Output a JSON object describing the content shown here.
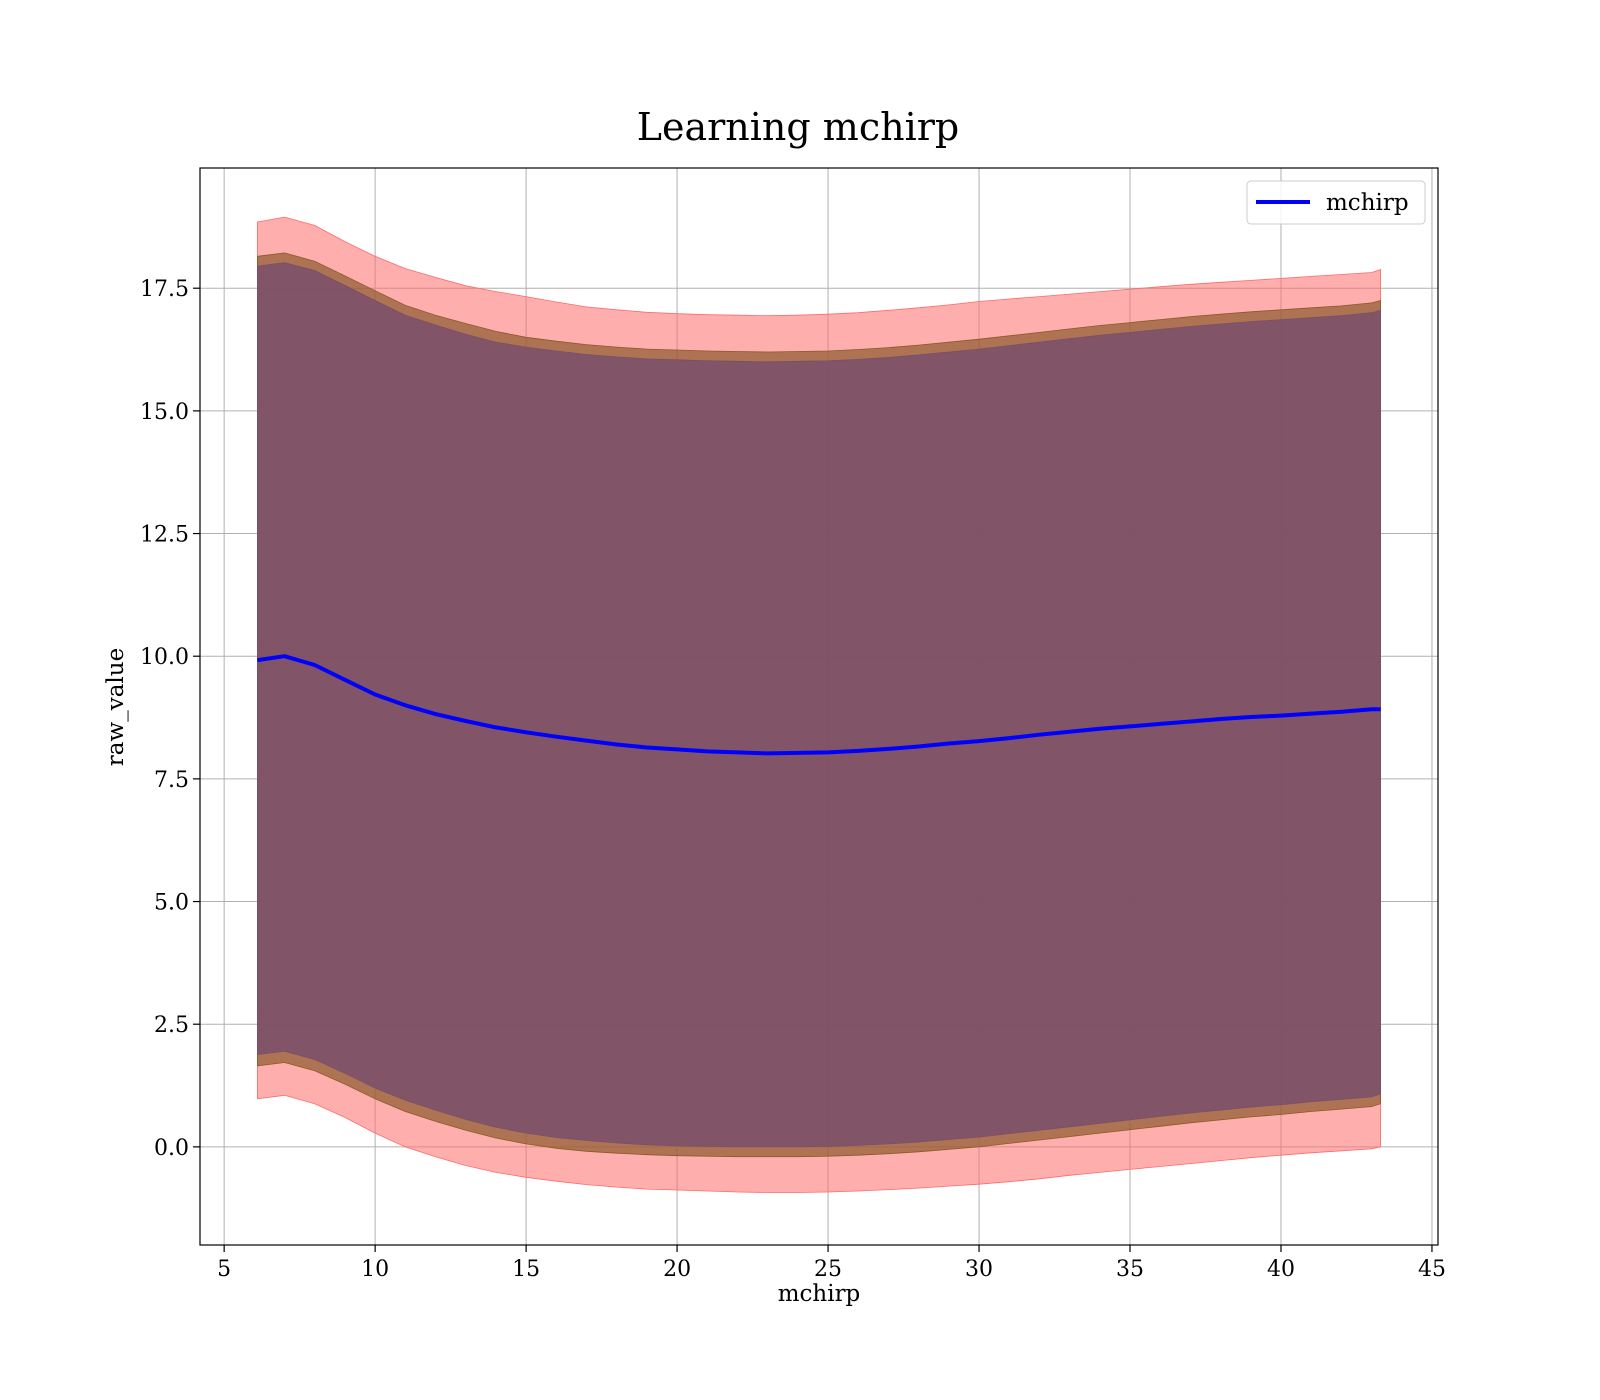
{
  "chart_data": {
    "type": "line",
    "title": "Learning mchirp",
    "xlabel": "mchirp",
    "ylabel": "raw_value",
    "xlim": [
      4.2,
      45.2
    ],
    "ylim": [
      -2.0,
      19.95
    ],
    "xticks": [
      5,
      10,
      15,
      20,
      25,
      30,
      35,
      40,
      45
    ],
    "xtick_labels": [
      "5",
      "10",
      "15",
      "20",
      "25",
      "30",
      "35",
      "40",
      "45"
    ],
    "yticks": [
      0.0,
      2.5,
      5.0,
      7.5,
      10.0,
      12.5,
      15.0,
      17.5
    ],
    "ytick_labels": [
      "0.0",
      "2.5",
      "5.0",
      "7.5",
      "10.0",
      "12.5",
      "15.0",
      "17.5"
    ],
    "grid": true,
    "legend": {
      "position": "top-right",
      "entries": [
        "mchirp"
      ]
    },
    "x": [
      6.1,
      7.0,
      8.0,
      9.0,
      10.0,
      11.0,
      12.0,
      13.0,
      14.0,
      15.0,
      16.0,
      17.0,
      18.0,
      19.0,
      20.0,
      21.0,
      22.0,
      23.0,
      24.0,
      25.0,
      26.0,
      27.0,
      28.0,
      29.0,
      30.0,
      31.0,
      32.0,
      33.0,
      34.0,
      35.0,
      36.0,
      37.0,
      38.0,
      39.0,
      40.0,
      41.0,
      42.0,
      43.0,
      43.3
    ],
    "series": [
      {
        "name": "mchirp",
        "color": "#0000ff",
        "values": [
          9.92,
          10.0,
          9.82,
          9.52,
          9.22,
          9.0,
          8.82,
          8.68,
          8.55,
          8.45,
          8.36,
          8.28,
          8.2,
          8.14,
          8.1,
          8.06,
          8.04,
          8.02,
          8.03,
          8.04,
          8.07,
          8.11,
          8.16,
          8.22,
          8.27,
          8.33,
          8.4,
          8.46,
          8.52,
          8.57,
          8.62,
          8.67,
          8.72,
          8.76,
          8.79,
          8.83,
          8.87,
          8.92,
          8.92
        ]
      }
    ],
    "bands": [
      {
        "color": "#ff6b6b",
        "opacity": 0.55,
        "upper": [
          18.85,
          18.95,
          18.78,
          18.45,
          18.15,
          17.9,
          17.72,
          17.55,
          17.43,
          17.33,
          17.22,
          17.12,
          17.06,
          17.01,
          16.98,
          16.96,
          16.95,
          16.94,
          16.95,
          16.97,
          17.0,
          17.05,
          17.1,
          17.16,
          17.23,
          17.28,
          17.33,
          17.38,
          17.43,
          17.48,
          17.53,
          17.58,
          17.62,
          17.66,
          17.7,
          17.74,
          17.78,
          17.82,
          17.88
        ],
        "lower": [
          0.98,
          1.05,
          0.88,
          0.6,
          0.28,
          0.0,
          -0.2,
          -0.38,
          -0.52,
          -0.62,
          -0.7,
          -0.77,
          -0.82,
          -0.86,
          -0.88,
          -0.9,
          -0.92,
          -0.93,
          -0.93,
          -0.92,
          -0.9,
          -0.87,
          -0.84,
          -0.8,
          -0.76,
          -0.71,
          -0.65,
          -0.58,
          -0.52,
          -0.46,
          -0.4,
          -0.34,
          -0.28,
          -0.22,
          -0.17,
          -0.12,
          -0.08,
          -0.04,
          0.0
        ]
      },
      {
        "color": "#8b5a2b",
        "opacity": 0.7,
        "upper": [
          18.15,
          18.22,
          18.05,
          17.75,
          17.45,
          17.15,
          16.95,
          16.78,
          16.62,
          16.5,
          16.42,
          16.35,
          16.3,
          16.26,
          16.24,
          16.22,
          16.21,
          16.2,
          16.21,
          16.22,
          16.25,
          16.29,
          16.34,
          16.4,
          16.46,
          16.53,
          16.6,
          16.67,
          16.74,
          16.8,
          16.86,
          16.92,
          16.97,
          17.02,
          17.06,
          17.1,
          17.14,
          17.2,
          17.25
        ],
        "lower": [
          1.65,
          1.72,
          1.55,
          1.28,
          0.98,
          0.72,
          0.52,
          0.34,
          0.18,
          0.06,
          -0.03,
          -0.09,
          -0.13,
          -0.16,
          -0.18,
          -0.19,
          -0.2,
          -0.2,
          -0.2,
          -0.19,
          -0.17,
          -0.14,
          -0.1,
          -0.05,
          0.0,
          0.07,
          0.14,
          0.21,
          0.28,
          0.35,
          0.42,
          0.49,
          0.55,
          0.61,
          0.66,
          0.72,
          0.77,
          0.82,
          0.88
        ]
      },
      {
        "color": "#7a4f6b",
        "opacity": 0.85,
        "upper": [
          17.95,
          18.02,
          17.86,
          17.56,
          17.25,
          16.95,
          16.75,
          16.56,
          16.4,
          16.3,
          16.22,
          16.15,
          16.1,
          16.06,
          16.04,
          16.02,
          16.01,
          16.0,
          16.01,
          16.02,
          16.05,
          16.09,
          16.14,
          16.2,
          16.26,
          16.33,
          16.4,
          16.47,
          16.54,
          16.6,
          16.66,
          16.72,
          16.77,
          16.82,
          16.86,
          16.9,
          16.94,
          17.0,
          17.05
        ],
        "lower": [
          1.88,
          1.95,
          1.78,
          1.5,
          1.2,
          0.95,
          0.75,
          0.56,
          0.4,
          0.28,
          0.19,
          0.13,
          0.08,
          0.04,
          0.02,
          0.01,
          0.0,
          0.0,
          0.0,
          0.01,
          0.03,
          0.06,
          0.1,
          0.15,
          0.2,
          0.27,
          0.34,
          0.41,
          0.48,
          0.55,
          0.62,
          0.69,
          0.75,
          0.81,
          0.86,
          0.92,
          0.97,
          1.02,
          1.08
        ]
      }
    ]
  }
}
